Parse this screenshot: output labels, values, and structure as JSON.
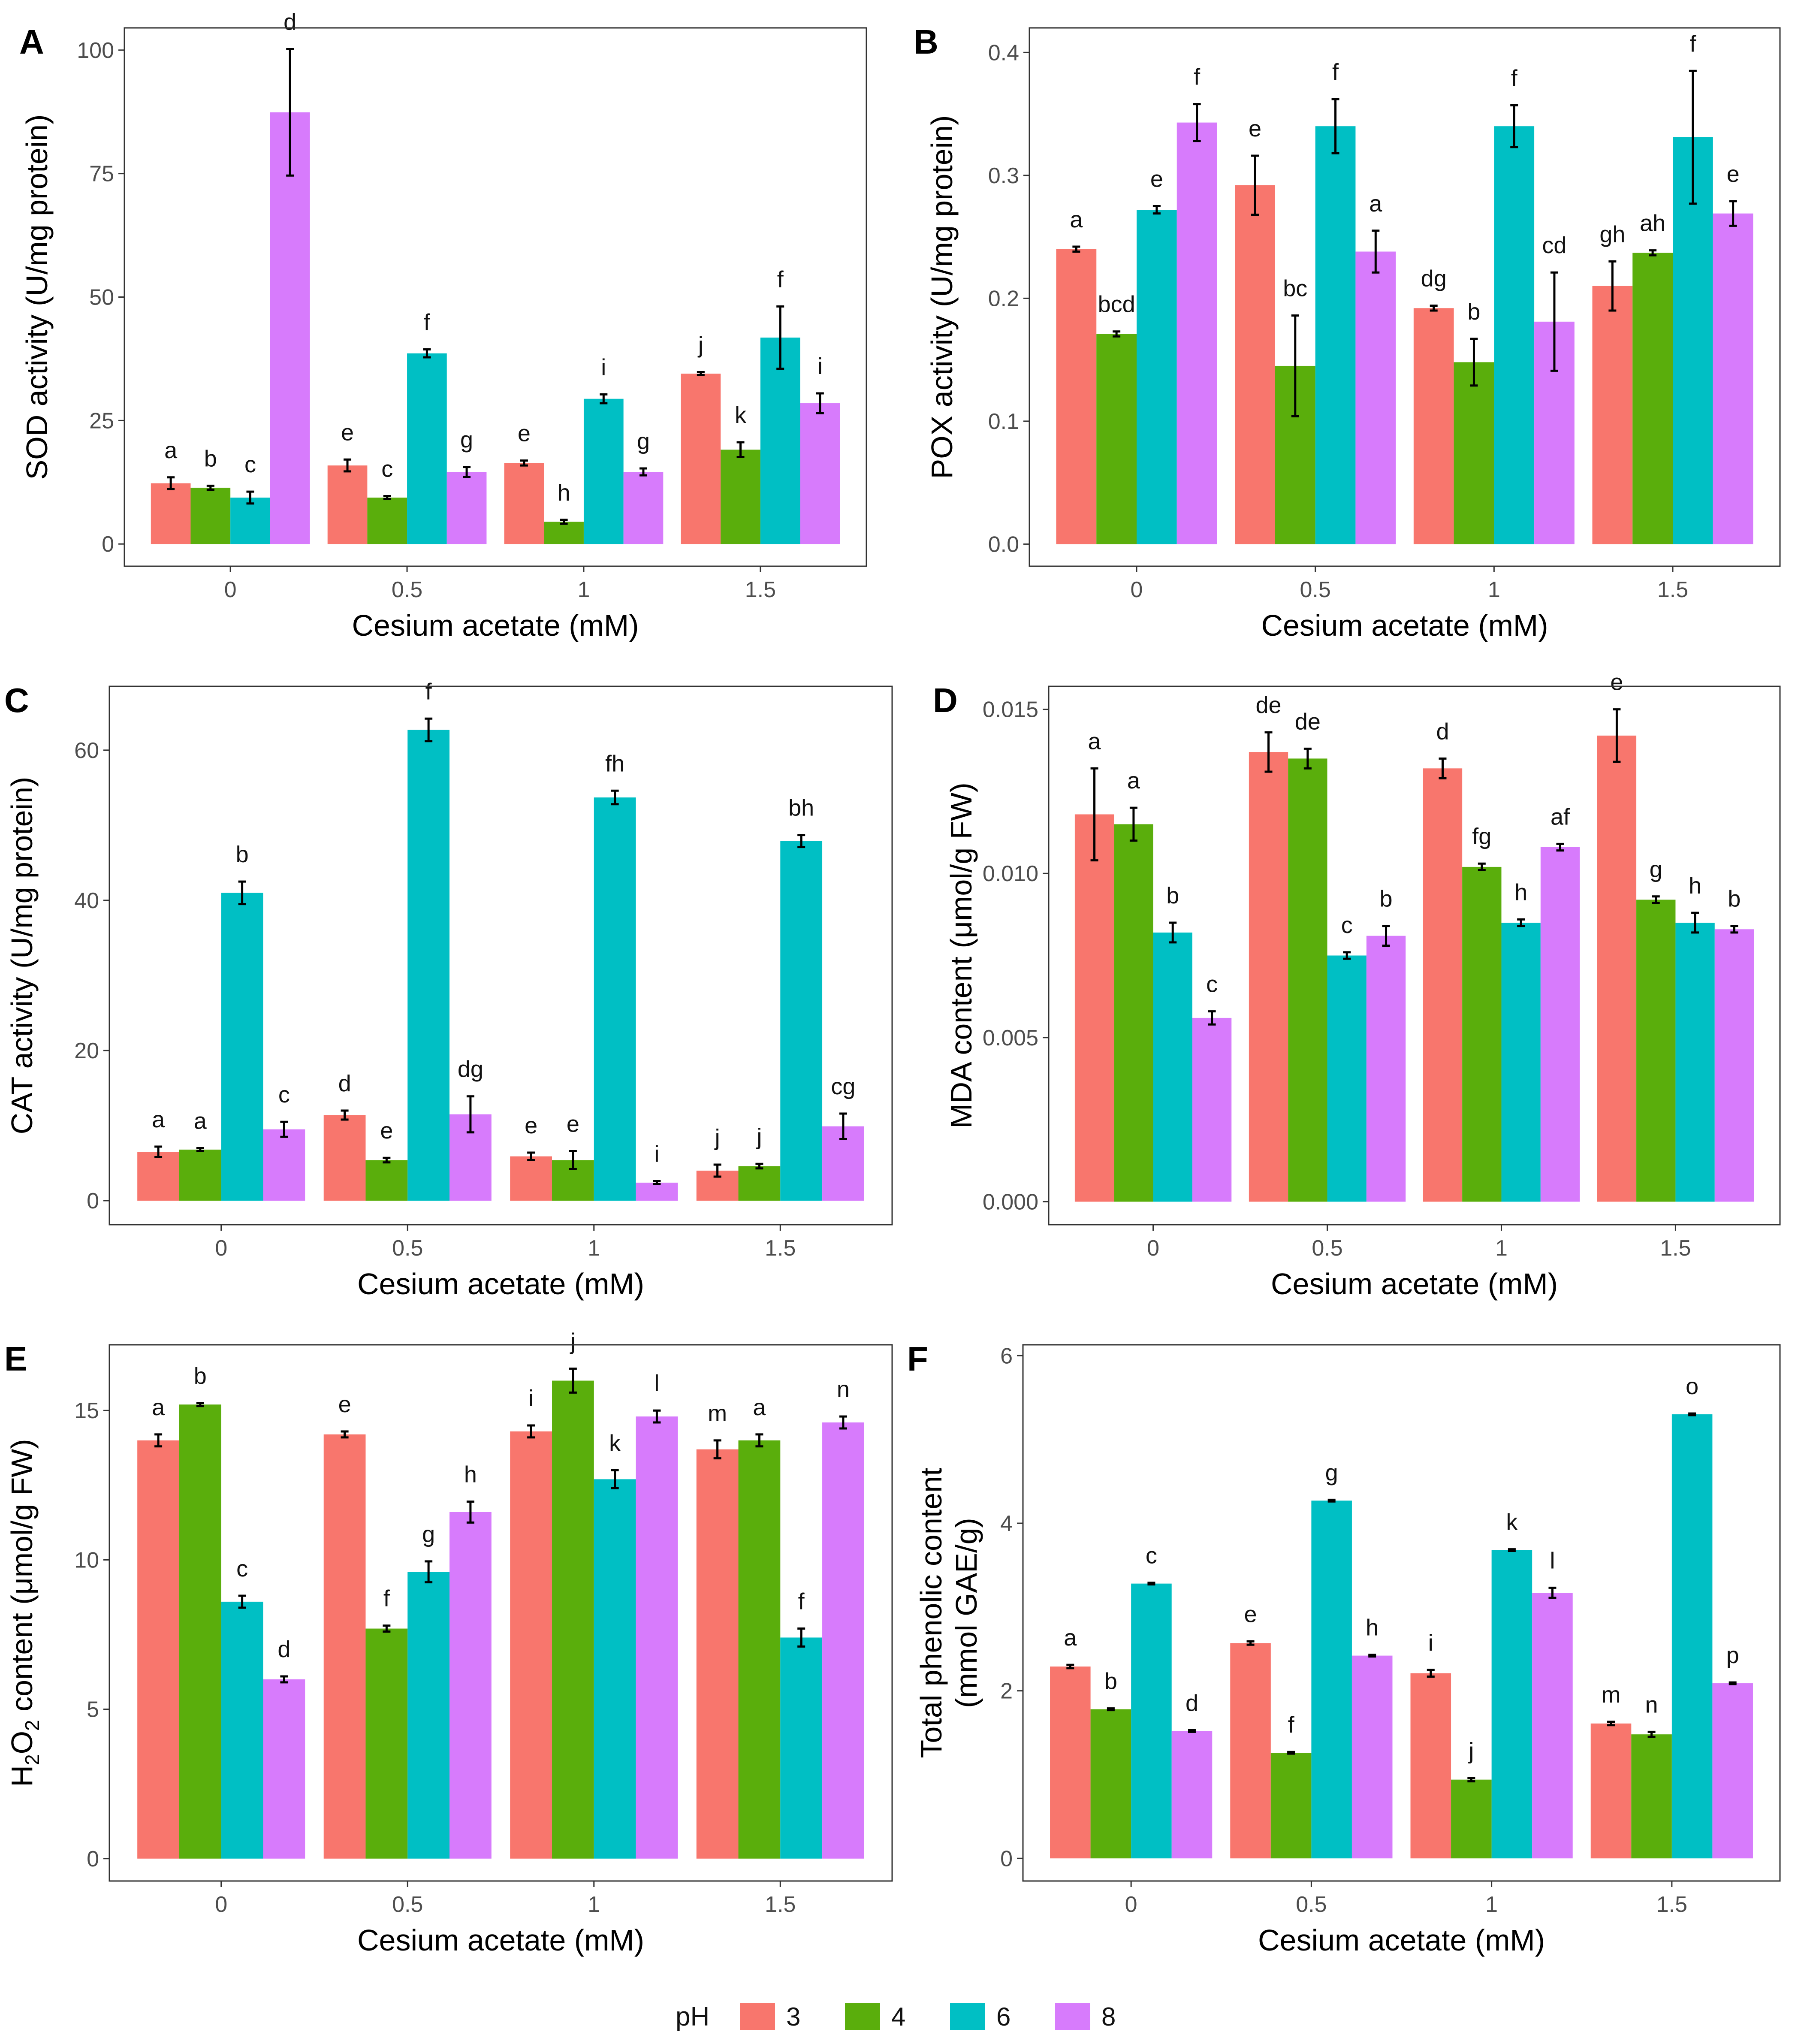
{
  "figure": {
    "legend": {
      "title": "pH",
      "items": [
        {
          "label": "3",
          "color": "#F8766D"
        },
        {
          "label": "4",
          "color": "#5AAE0C"
        },
        {
          "label": "6",
          "color": "#00BFC4"
        },
        {
          "label": "8",
          "color": "#D77BFC"
        }
      ]
    }
  },
  "chart_data": [
    {
      "id": "A",
      "type": "bar",
      "panel_label": "A",
      "xlabel": "Cesium acetate (mM)",
      "ylabel": "SOD activity (U/mg protein)",
      "categories": [
        "0",
        "0.5",
        "1",
        "1.5"
      ],
      "ylim": [
        -4.5,
        104.5
      ],
      "yticks": [
        0,
        25,
        50,
        75,
        100
      ],
      "ytick_labels": [
        "0",
        "25",
        "50",
        "75",
        "100"
      ],
      "series": [
        {
          "name": "3",
          "values": [
            12.3,
            15.9,
            16.4,
            34.5
          ],
          "errors": [
            1.2,
            1.2,
            0.5,
            0.3
          ],
          "letters": [
            "a",
            "e",
            "e",
            "j"
          ]
        },
        {
          "name": "4",
          "values": [
            11.4,
            9.4,
            4.5,
            19.1
          ],
          "errors": [
            0.4,
            0.3,
            0.4,
            1.5
          ],
          "letters": [
            "b",
            "c",
            "h",
            "k"
          ]
        },
        {
          "name": "6",
          "values": [
            9.4,
            38.6,
            29.4,
            41.8
          ],
          "errors": [
            1.2,
            0.8,
            0.9,
            6.3
          ],
          "letters": [
            "c",
            "f",
            "i",
            "f"
          ]
        },
        {
          "name": "8",
          "values": [
            87.4,
            14.6,
            14.6,
            28.5
          ],
          "errors": [
            12.8,
            1.0,
            0.7,
            2.0
          ],
          "letters": [
            "d",
            "g",
            "g",
            "i"
          ]
        }
      ]
    },
    {
      "id": "B",
      "type": "bar",
      "panel_label": "B",
      "xlabel": "Cesium acetate (mM)",
      "ylabel": "POX activity (U/mg protein)",
      "categories": [
        "0",
        "0.5",
        "1",
        "1.5"
      ],
      "ylim": [
        -0.018,
        0.42
      ],
      "yticks": [
        0,
        0.1,
        0.2,
        0.3,
        0.4
      ],
      "ytick_labels": [
        "0.0",
        "0.1",
        "0.2",
        "0.3",
        "0.4"
      ],
      "series": [
        {
          "name": "3",
          "values": [
            0.24,
            0.292,
            0.192,
            0.21
          ],
          "errors": [
            0.002,
            0.024,
            0.002,
            0.02
          ],
          "letters": [
            "a",
            "e",
            "dg",
            "gh"
          ]
        },
        {
          "name": "4",
          "values": [
            0.171,
            0.145,
            0.148,
            0.237
          ],
          "errors": [
            0.002,
            0.041,
            0.019,
            0.002
          ],
          "letters": [
            "bcd",
            "bc",
            "b",
            "ah"
          ]
        },
        {
          "name": "6",
          "values": [
            0.272,
            0.34,
            0.34,
            0.331
          ],
          "errors": [
            0.003,
            0.022,
            0.017,
            0.054
          ],
          "letters": [
            "e",
            "f",
            "f",
            "f"
          ]
        },
        {
          "name": "8",
          "values": [
            0.343,
            0.238,
            0.181,
            0.269
          ],
          "errors": [
            0.015,
            0.017,
            0.04,
            0.01
          ],
          "letters": [
            "f",
            "a",
            "cd",
            "e"
          ]
        }
      ]
    },
    {
      "id": "C",
      "type": "bar",
      "panel_label": "C",
      "xlabel": "Cesium acetate (mM)",
      "ylabel": "CAT activity (U/mg protein)",
      "categories": [
        "0",
        "0.5",
        "1",
        "1.5"
      ],
      "ylim": [
        -3.2,
        68.5
      ],
      "yticks": [
        0,
        20,
        40,
        60
      ],
      "ytick_labels": [
        "0",
        "20",
        "40",
        "60"
      ],
      "series": [
        {
          "name": "3",
          "values": [
            6.5,
            11.4,
            5.9,
            4.0
          ],
          "errors": [
            0.7,
            0.6,
            0.5,
            0.8
          ],
          "letters": [
            "a",
            "d",
            "e",
            "j"
          ]
        },
        {
          "name": "4",
          "values": [
            6.8,
            5.4,
            5.4,
            4.6
          ],
          "errors": [
            0.2,
            0.3,
            1.2,
            0.3
          ],
          "letters": [
            "a",
            "e",
            "e",
            "j"
          ]
        },
        {
          "name": "6",
          "values": [
            41.0,
            62.7,
            53.7,
            47.9
          ],
          "errors": [
            1.5,
            1.5,
            0.9,
            0.8
          ],
          "letters": [
            "b",
            "f",
            "fh",
            "bh"
          ]
        },
        {
          "name": "8",
          "values": [
            9.5,
            11.5,
            2.4,
            9.9
          ],
          "errors": [
            1.0,
            2.4,
            0.2,
            1.7
          ],
          "letters": [
            "c",
            "dg",
            "i",
            "cg"
          ]
        }
      ]
    },
    {
      "id": "D",
      "type": "bar",
      "panel_label": "D",
      "xlabel": "Cesium acetate (mM)",
      "ylabel": "MDA content (μmol/g FW)",
      "categories": [
        "0",
        "0.5",
        "1",
        "1.5"
      ],
      "ylim": [
        -0.0007,
        0.0157
      ],
      "yticks": [
        0,
        0.005,
        0.01,
        0.015
      ],
      "ytick_labels": [
        "0.000",
        "0.005",
        "0.010",
        "0.015"
      ],
      "series": [
        {
          "name": "3",
          "values": [
            0.0118,
            0.0137,
            0.0132,
            0.0142
          ],
          "errors": [
            0.0014,
            0.0006,
            0.0003,
            0.0008
          ],
          "letters": [
            "a",
            "de",
            "d",
            "e"
          ]
        },
        {
          "name": "4",
          "values": [
            0.0115,
            0.0135,
            0.0102,
            0.0092
          ],
          "errors": [
            0.0005,
            0.0003,
            0.0001,
            0.0001
          ],
          "letters": [
            "a",
            "de",
            "fg",
            "g"
          ]
        },
        {
          "name": "6",
          "values": [
            0.0082,
            0.0075,
            0.0085,
            0.0085
          ],
          "errors": [
            0.0003,
            0.0001,
            0.0001,
            0.0003
          ],
          "letters": [
            "b",
            "c",
            "h",
            "h"
          ]
        },
        {
          "name": "8",
          "values": [
            0.0056,
            0.0081,
            0.0108,
            0.0083
          ],
          "errors": [
            0.0002,
            0.0003,
            0.0001,
            0.0001
          ],
          "letters": [
            "c",
            "b",
            "af",
            "b"
          ]
        }
      ]
    },
    {
      "id": "E",
      "type": "bar",
      "panel_label": "E",
      "ylabel_html": true,
      "xlabel": "Cesium acetate (mM)",
      "ylabel": "H2O2 content (μmol/g FW)",
      "ylabel_parts": [
        "H",
        "2",
        "O",
        "2",
        " content (μmol/g FW)"
      ],
      "categories": [
        "0",
        "0.5",
        "1",
        "1.5"
      ],
      "ylim": [
        -0.75,
        17.2
      ],
      "yticks": [
        0,
        5,
        10,
        15
      ],
      "ytick_labels": [
        "0",
        "5",
        "10",
        "15"
      ],
      "series": [
        {
          "name": "3",
          "values": [
            14.0,
            14.2,
            14.3,
            13.7
          ],
          "errors": [
            0.2,
            0.1,
            0.2,
            0.3
          ],
          "letters": [
            "a",
            "e",
            "i",
            "m"
          ]
        },
        {
          "name": "4",
          "values": [
            15.2,
            7.7,
            16.0,
            14.0
          ],
          "errors": [
            0.05,
            0.1,
            0.4,
            0.2
          ],
          "letters": [
            "b",
            "f",
            "j",
            "a"
          ]
        },
        {
          "name": "6",
          "values": [
            8.6,
            9.6,
            12.7,
            7.4
          ],
          "errors": [
            0.2,
            0.35,
            0.3,
            0.3
          ],
          "letters": [
            "c",
            "g",
            "k",
            "f"
          ]
        },
        {
          "name": "8",
          "values": [
            6.0,
            11.6,
            14.8,
            14.6
          ],
          "errors": [
            0.1,
            0.35,
            0.2,
            0.2
          ],
          "letters": [
            "d",
            "h",
            "l",
            "n"
          ]
        }
      ]
    },
    {
      "id": "F",
      "type": "bar",
      "panel_label": "F",
      "xlabel": "Cesium acetate (mM)",
      "ylabel": "Total phenolic content",
      "ylabel2": "(mmol GAE/g)",
      "categories": [
        "0",
        "0.5",
        "1",
        "1.5"
      ],
      "ylim": [
        -0.27,
        6.13
      ],
      "yticks": [
        0,
        2,
        4,
        6
      ],
      "ytick_labels": [
        "0",
        "2",
        "4",
        "6"
      ],
      "series": [
        {
          "name": "3",
          "values": [
            2.29,
            2.57,
            2.21,
            1.61
          ],
          "errors": [
            0.02,
            0.02,
            0.04,
            0.02
          ],
          "letters": [
            "a",
            "e",
            "i",
            "m"
          ]
        },
        {
          "name": "4",
          "values": [
            1.78,
            1.26,
            0.94,
            1.48
          ],
          "errors": [
            0.01,
            0.01,
            0.02,
            0.03
          ],
          "letters": [
            "b",
            "f",
            "j",
            "n"
          ]
        },
        {
          "name": "6",
          "values": [
            3.28,
            4.27,
            3.68,
            5.3
          ],
          "errors": [
            0.01,
            0.01,
            0.01,
            0.01
          ],
          "letters": [
            "c",
            "g",
            "k",
            "o"
          ]
        },
        {
          "name": "8",
          "values": [
            1.52,
            2.42,
            3.17,
            2.09
          ],
          "errors": [
            0.01,
            0.01,
            0.06,
            0.01
          ],
          "letters": [
            "d",
            "h",
            "l",
            "p"
          ]
        }
      ]
    }
  ]
}
